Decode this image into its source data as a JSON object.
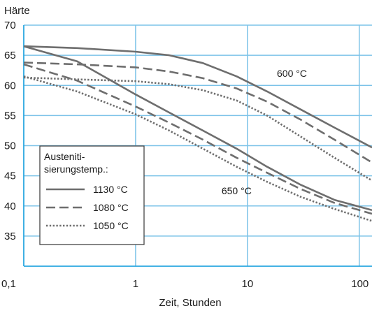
{
  "chart_data": {
    "type": "line",
    "ylabel": "Härte",
    "xlabel": "Zeit, Stunden",
    "x_scale": "log",
    "xlim": [
      0.1,
      130
    ],
    "ylim": [
      30,
      70
    ],
    "x_ticks": [
      0.1,
      1,
      10,
      100
    ],
    "x_tick_labels": [
      "0,1",
      "1",
      "10",
      "100"
    ],
    "y_ticks": [
      35,
      40,
      45,
      50,
      55,
      60,
      65,
      70
    ],
    "y_tick_labels": [
      "35",
      "40",
      "45",
      "50",
      "55",
      "60",
      "65",
      "70"
    ],
    "grid": true,
    "legend": {
      "title_line1": "Austeniti-",
      "title_line2": "sierungstemp.:",
      "position": "lower-left",
      "entries": [
        {
          "label": "1130 °C",
          "style": "solid"
        },
        {
          "label": "1080 °C",
          "style": "dashed"
        },
        {
          "label": "1050 °C",
          "style": "dotted"
        }
      ]
    },
    "annotations": [
      {
        "text": "600 °C",
        "x": 25,
        "y": 62
      },
      {
        "text": "650 °C",
        "x": 8,
        "y": 42.5
      }
    ],
    "series": [
      {
        "group": "600 °C",
        "style": "solid",
        "x": [
          0.1,
          0.3,
          1,
          2,
          4,
          8,
          15,
          30,
          60,
          130
        ],
        "y": [
          66.5,
          66.2,
          65.6,
          65,
          63.7,
          61.5,
          59,
          56,
          53,
          49.7
        ]
      },
      {
        "group": "600 °C",
        "style": "dashed",
        "x": [
          0.1,
          0.3,
          1,
          2,
          4,
          8,
          15,
          30,
          60,
          130
        ],
        "y": [
          63.8,
          63.5,
          63,
          62.3,
          61.2,
          59.5,
          57.3,
          54.3,
          51,
          47.2
        ]
      },
      {
        "group": "600 °C",
        "style": "dotted",
        "x": [
          0.1,
          0.3,
          1,
          2,
          4,
          8,
          15,
          30,
          60,
          130
        ],
        "y": [
          61.3,
          61,
          60.7,
          60.2,
          59.2,
          57.5,
          55,
          51.5,
          48,
          44.2
        ]
      },
      {
        "group": "650 °C",
        "style": "solid",
        "x": [
          0.1,
          0.3,
          1,
          2,
          4,
          8,
          15,
          30,
          60,
          130
        ],
        "y": [
          66.5,
          64,
          58.5,
          55.5,
          52.5,
          49.5,
          46.5,
          43.5,
          41,
          39.3
        ]
      },
      {
        "group": "650 °C",
        "style": "dashed",
        "x": [
          0.1,
          0.3,
          1,
          2,
          4,
          8,
          15,
          30,
          60,
          130
        ],
        "y": [
          63.5,
          60.8,
          56.5,
          53.8,
          51,
          48,
          45.5,
          42.8,
          40.5,
          38.7
        ]
      },
      {
        "group": "650 °C",
        "style": "dotted",
        "x": [
          0.1,
          0.3,
          1,
          2,
          4,
          8,
          15,
          30,
          60,
          130
        ],
        "y": [
          61.5,
          59,
          55.2,
          52.5,
          49.5,
          46.5,
          44,
          41.5,
          39.5,
          37.5
        ]
      }
    ]
  }
}
